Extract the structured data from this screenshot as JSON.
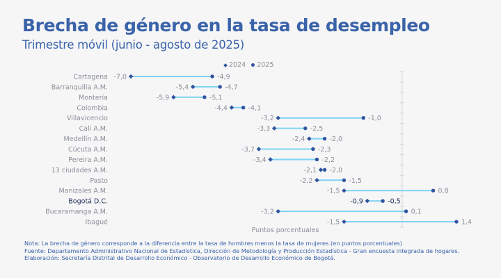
{
  "header": {
    "title": "Brecha de género en la tasa de desempleo",
    "subtitle": "Trimestre móvil (junio - agosto de 2025)"
  },
  "colors": {
    "title": "#3a63a8",
    "marker": "#2f54a0",
    "connector": "#7fd3f2",
    "label": "#8a8f98",
    "highlight_label": "#1f2a55",
    "axis": "#d4d6da"
  },
  "notes": {
    "nota": "Nota: La brecha de género corresponde a la diferencia entre la tasa de hombres menos la tasa de mujeres (en puntos porcentuales)",
    "fuente": "Fuente: Departamento Administrativo Nacional de Estadística, Dirección de Metodología y Producción Estadística - Gran encuesta integrada de hogares.",
    "elaboracion": "Elaboración: Secretaría Distrital de Desarrollo Económico - Observatorio de Desarrollo Económico de Bogotá."
  },
  "chart_data": {
    "type": "dumbbell",
    "title": "Brecha de género en la tasa de desempleo",
    "subtitle": "Trimestre móvil (junio - agosto de 2025)",
    "xlabel": "Puntos porcentuales",
    "ylabel": "",
    "xlim": [
      -7.0,
      1.4
    ],
    "grid": false,
    "legend": {
      "position": "top-center",
      "entries": [
        {
          "name": "2024",
          "marker": "diamond"
        },
        {
          "name": "2025",
          "marker": "circle"
        }
      ]
    },
    "highlight": "Bogotá D.C.",
    "categories": [
      "Cartagena",
      "Barranquilla A.M.",
      "Montería",
      "Colombia",
      "Villavicencio",
      "Cali A.M.",
      "Medellín A.M.",
      "Cúcuta A.M.",
      "Pereira A.M.",
      "13 ciudades A.M.",
      "Pasto",
      "Manizales A.M.",
      "Bogotá D.C.",
      "Bucaramanga A.M.",
      "Ibagué"
    ],
    "series": [
      {
        "name": "2024",
        "values": [
          -7.0,
          -5.4,
          -5.9,
          -4.4,
          -3.2,
          -3.3,
          -2.4,
          -3.7,
          -3.4,
          -2.1,
          -2.2,
          -1.5,
          -0.9,
          -3.2,
          -1.5
        ]
      },
      {
        "name": "2025",
        "values": [
          -4.9,
          -4.7,
          -5.1,
          -4.1,
          -1.0,
          -2.5,
          -2.0,
          -2.3,
          -2.2,
          -2.0,
          -1.5,
          0.8,
          -0.5,
          0.1,
          1.4
        ]
      }
    ],
    "value_labels": {
      "2024": [
        "-7,0",
        "-5,4",
        "-5,9",
        "-4,4",
        "-3,2",
        "-3,3",
        "-2,4",
        "-3,7",
        "-3,4",
        "-2,1",
        "-2,2",
        "-1,5",
        "-0,9",
        "-3,2",
        "-1,5"
      ],
      "2025": [
        "-4,9",
        "-4,7",
        "-5,1",
        "-4,1",
        "-1,0",
        "-2,5",
        "-2,0",
        "-2,3",
        "-2,2",
        "-2,0",
        "-1,5",
        "0,8",
        "-0,5",
        "0,1",
        "1,4"
      ]
    }
  }
}
